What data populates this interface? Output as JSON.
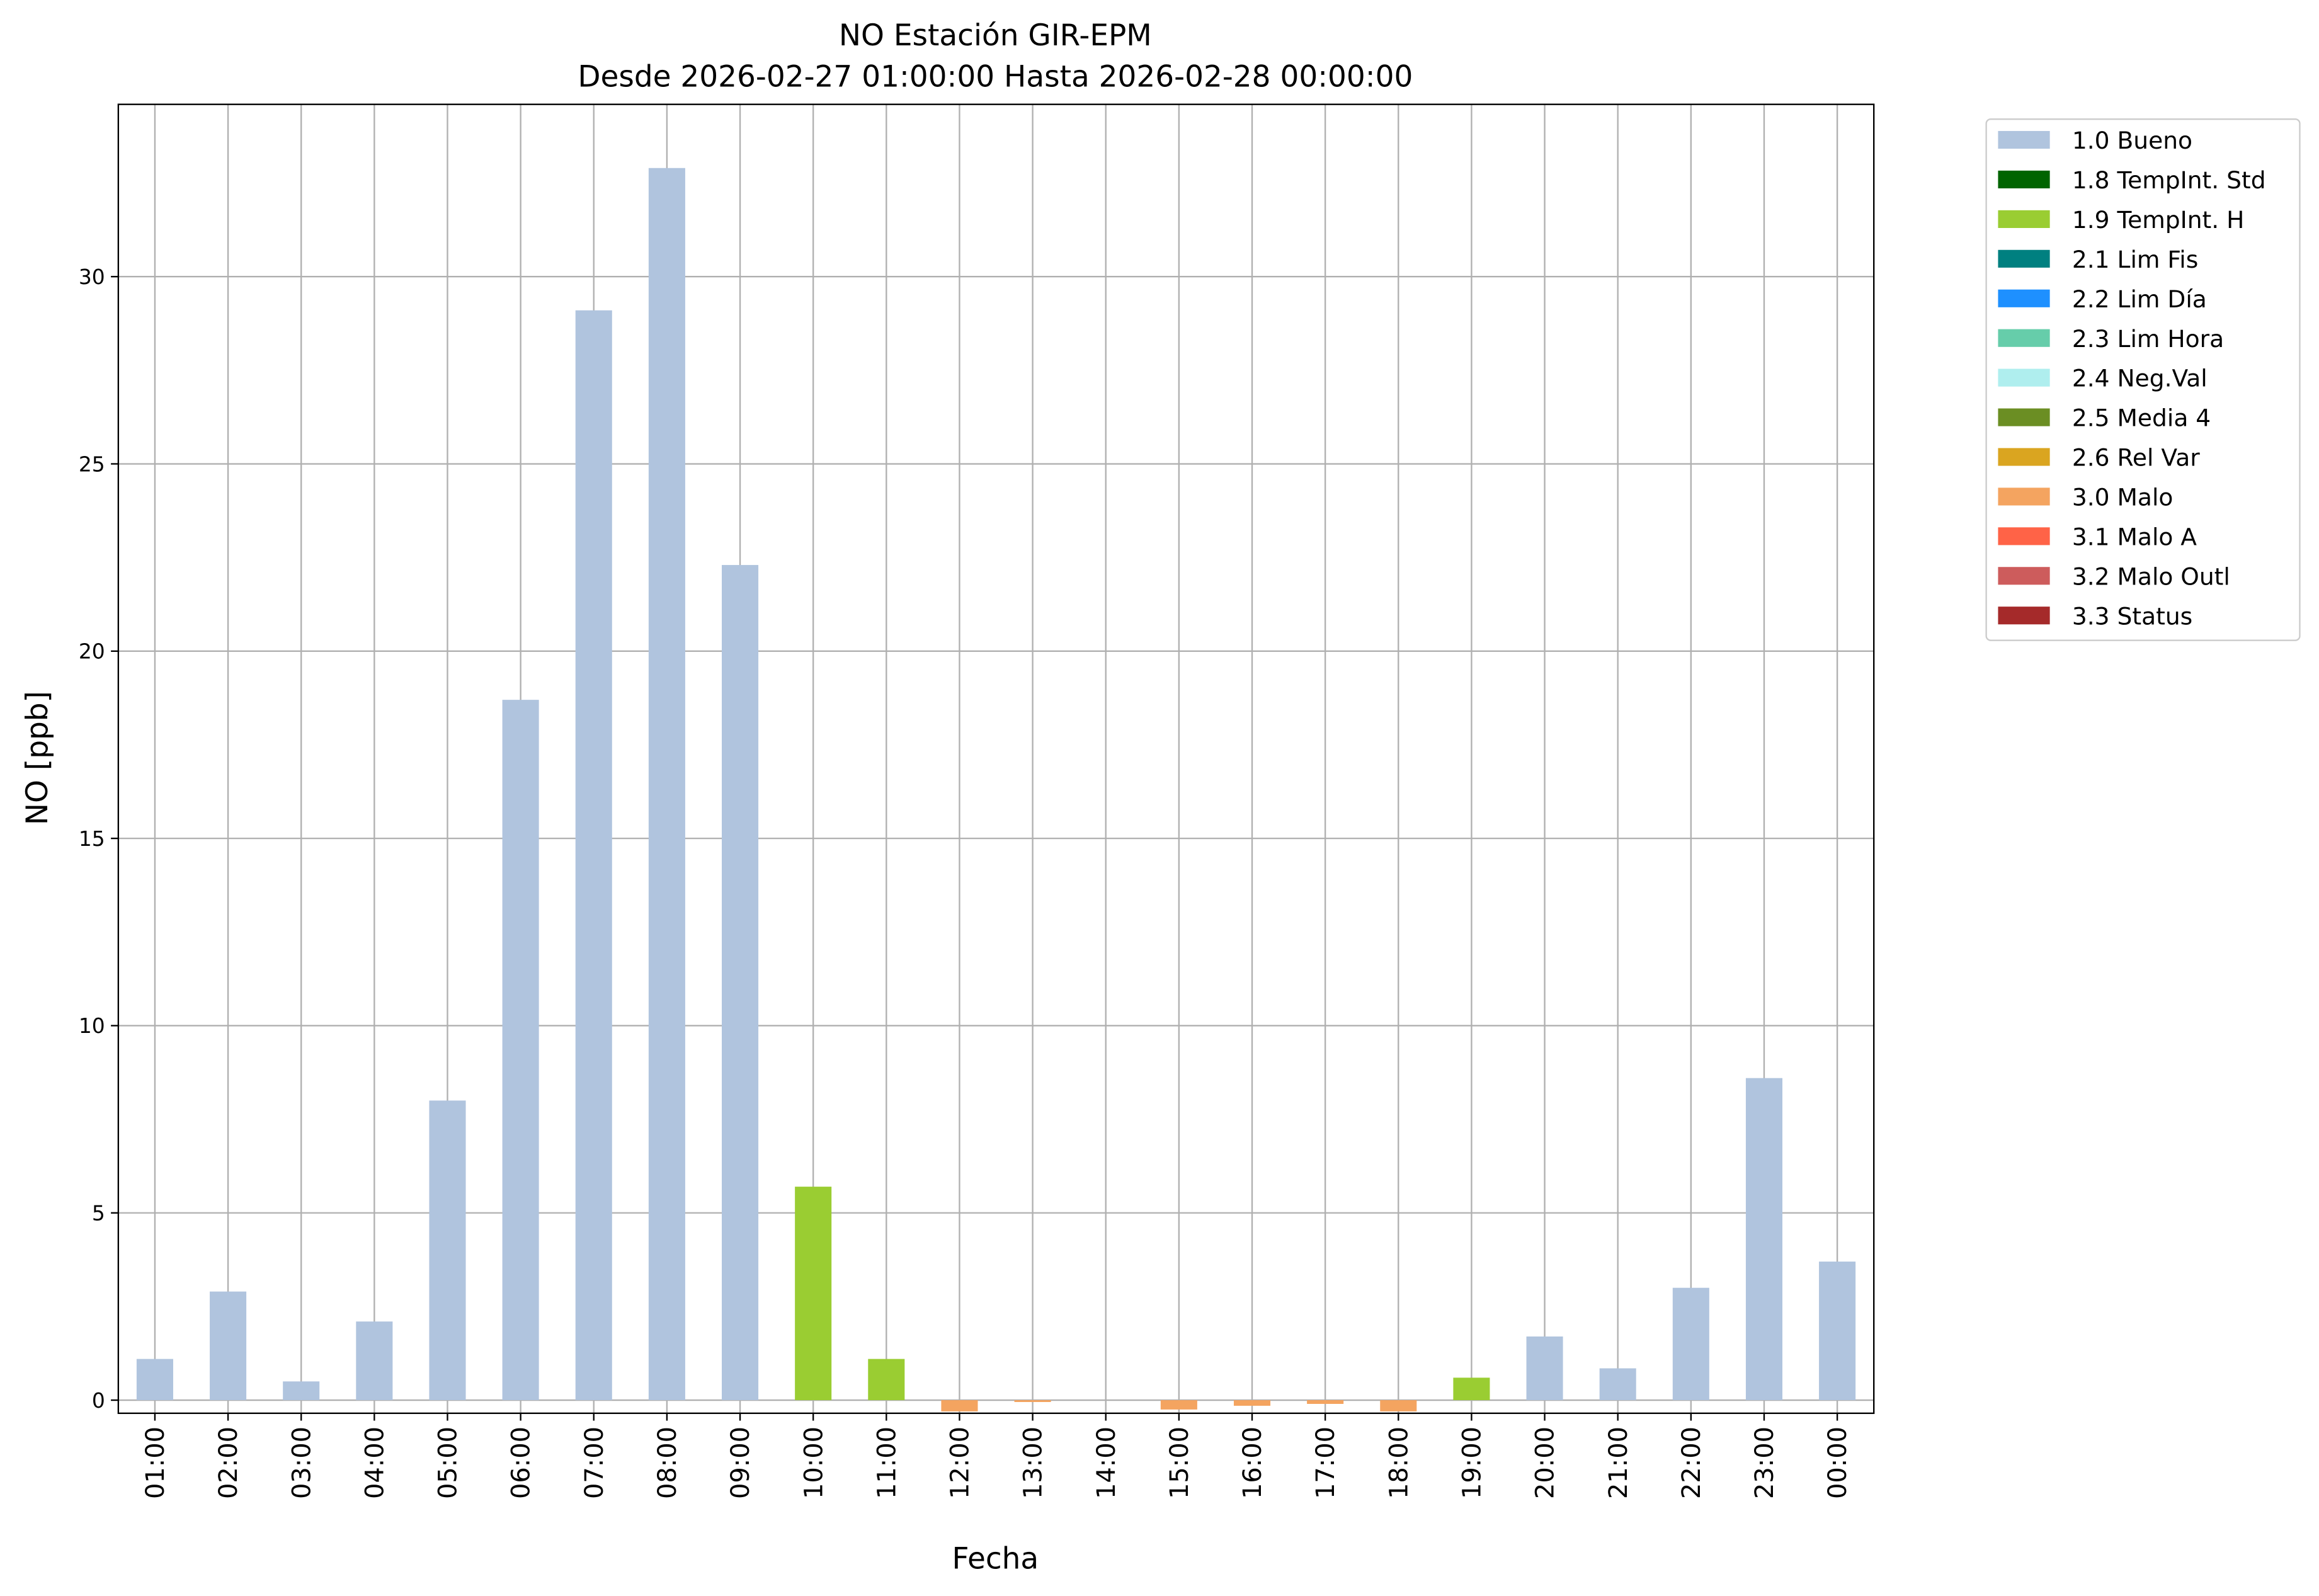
{
  "chart_data": {
    "type": "stacked_bar",
    "title": "NO Estación GIR-EPM",
    "subtitle": "Desde 2026-02-27 01:00:00 Hasta 2026-02-28 00:00:00",
    "x_label": "Fecha",
    "y_label": "NO [ppb]",
    "categories": [
      "01:00",
      "02:00",
      "03:00",
      "04:00",
      "05:00",
      "06:00",
      "07:00",
      "08:00",
      "09:00",
      "10:00",
      "11:00",
      "12:00",
      "13:00",
      "14:00",
      "15:00",
      "16:00",
      "17:00",
      "18:00",
      "19:00",
      "20:00",
      "21:00",
      "22:00",
      "23:00",
      "00:00"
    ],
    "ylim": [
      -0.35,
      34.6
    ],
    "yticks": [
      0,
      5,
      10,
      15,
      20,
      25,
      30
    ],
    "grid": true,
    "legend": "outside-upper-right",
    "series": [
      {
        "name": "1.0 Bueno",
        "color": "#b0c4de",
        "values": [
          1.1,
          2.9,
          0.5,
          2.1,
          8.0,
          18.7,
          29.1,
          32.9,
          22.3,
          null,
          null,
          null,
          null,
          null,
          null,
          null,
          null,
          null,
          null,
          1.7,
          0.85,
          3.0,
          8.6,
          3.7
        ]
      },
      {
        "name": "1.8 TempInt. Std",
        "color": "#006400",
        "values": [
          null,
          null,
          null,
          null,
          null,
          null,
          null,
          null,
          null,
          null,
          null,
          null,
          null,
          null,
          null,
          null,
          null,
          null,
          null,
          null,
          null,
          null,
          null,
          null
        ]
      },
      {
        "name": "1.9 TempInt. H",
        "color": "#9acd32",
        "values": [
          null,
          null,
          null,
          null,
          null,
          null,
          null,
          null,
          null,
          5.7,
          1.1,
          null,
          null,
          null,
          null,
          null,
          null,
          null,
          0.6,
          null,
          null,
          null,
          null,
          null
        ]
      },
      {
        "name": "2.1 Lim Fis",
        "color": "#008080",
        "values": [
          null,
          null,
          null,
          null,
          null,
          null,
          null,
          null,
          null,
          null,
          null,
          null,
          null,
          null,
          null,
          null,
          null,
          null,
          null,
          null,
          null,
          null,
          null,
          null
        ]
      },
      {
        "name": "2.2 Lim Día",
        "color": "#1e90ff",
        "values": [
          null,
          null,
          null,
          null,
          null,
          null,
          null,
          null,
          null,
          null,
          null,
          null,
          null,
          null,
          null,
          null,
          null,
          null,
          null,
          null,
          null,
          null,
          null,
          null
        ]
      },
      {
        "name": "2.3 Lim Hora",
        "color": "#66cdaa",
        "values": [
          null,
          null,
          null,
          null,
          null,
          null,
          null,
          null,
          null,
          null,
          null,
          null,
          null,
          null,
          null,
          null,
          null,
          null,
          null,
          null,
          null,
          null,
          null,
          null
        ]
      },
      {
        "name": "2.4 Neg.Val",
        "color": "#afeeee",
        "values": [
          null,
          null,
          null,
          null,
          null,
          null,
          null,
          null,
          null,
          null,
          null,
          null,
          null,
          null,
          null,
          null,
          null,
          null,
          null,
          null,
          null,
          null,
          null,
          null
        ]
      },
      {
        "name": "2.5 Media 4",
        "color": "#6b8e23",
        "values": [
          null,
          null,
          null,
          null,
          null,
          null,
          null,
          null,
          null,
          null,
          null,
          null,
          null,
          null,
          null,
          null,
          null,
          null,
          null,
          null,
          null,
          null,
          null,
          null
        ]
      },
      {
        "name": "2.6 Rel Var",
        "color": "#daa520",
        "values": [
          null,
          null,
          null,
          null,
          null,
          null,
          null,
          null,
          null,
          null,
          null,
          null,
          null,
          null,
          null,
          null,
          null,
          null,
          null,
          null,
          null,
          null,
          null,
          null
        ]
      },
      {
        "name": "3.0 Malo",
        "color": "#f4a460",
        "values": [
          null,
          null,
          null,
          null,
          null,
          null,
          null,
          null,
          null,
          null,
          null,
          -0.3,
          -0.05,
          null,
          -0.25,
          -0.15,
          -0.1,
          -0.3,
          null,
          null,
          null,
          null,
          null,
          null
        ]
      },
      {
        "name": "3.1 Malo A",
        "color": "#ff6347",
        "values": [
          null,
          null,
          null,
          null,
          null,
          null,
          null,
          null,
          null,
          null,
          null,
          null,
          null,
          null,
          null,
          null,
          null,
          null,
          null,
          null,
          null,
          null,
          null,
          null
        ]
      },
      {
        "name": "3.2 Malo Outl",
        "color": "#cd5c5c",
        "values": [
          null,
          null,
          null,
          null,
          null,
          null,
          null,
          null,
          null,
          null,
          null,
          null,
          null,
          null,
          null,
          null,
          null,
          null,
          null,
          null,
          null,
          null,
          null,
          null
        ]
      },
      {
        "name": "3.3 Status",
        "color": "#a52a2a",
        "values": [
          null,
          null,
          null,
          null,
          null,
          null,
          null,
          null,
          null,
          null,
          null,
          null,
          null,
          null,
          null,
          null,
          null,
          null,
          null,
          null,
          null,
          null,
          null,
          null
        ]
      }
    ]
  }
}
